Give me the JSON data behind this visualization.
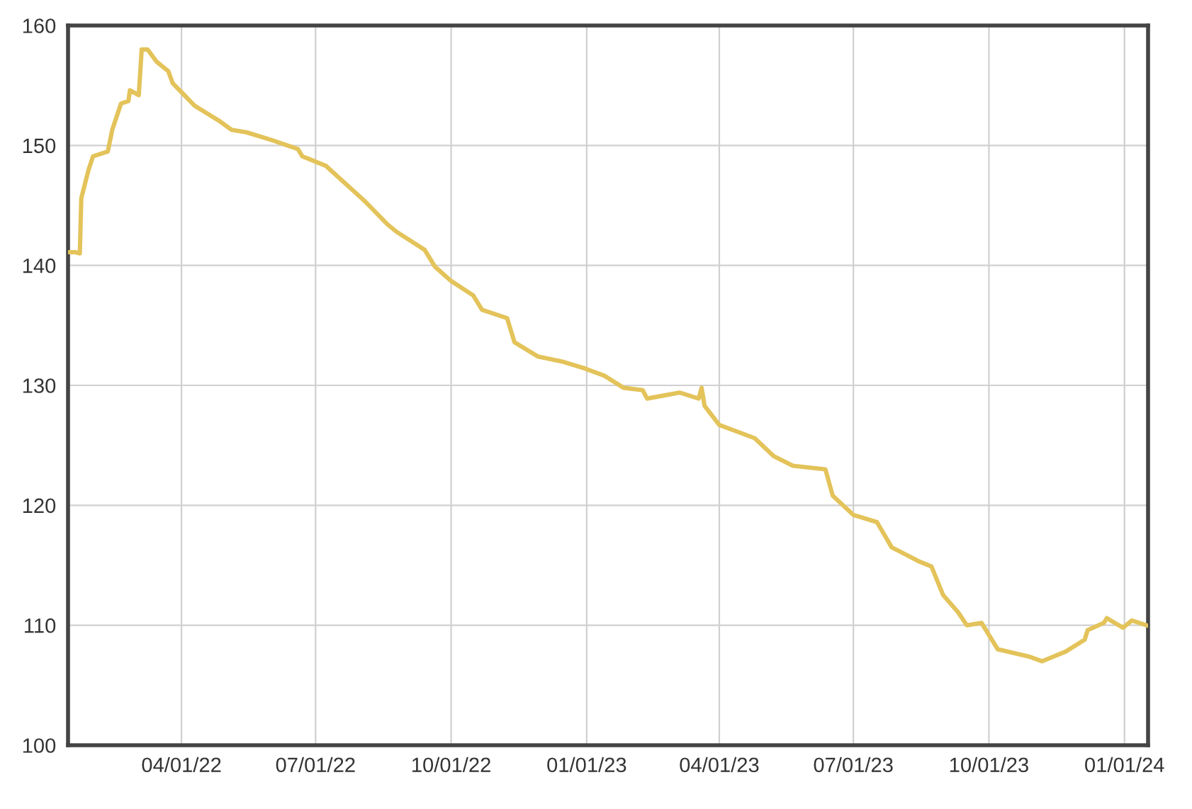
{
  "chart_data": {
    "type": "line",
    "grid": true,
    "marker": "none",
    "line_style": "solid",
    "x": [
      "2022-01-15",
      "2022-01-19",
      "2022-01-22",
      "2022-01-23",
      "2022-01-28",
      "2022-01-31",
      "2022-02-10",
      "2022-02-13",
      "2022-02-19",
      "2022-02-24",
      "2022-02-25",
      "2022-03-03",
      "2022-03-05",
      "2022-03-09",
      "2022-03-15",
      "2022-03-23",
      "2022-03-26",
      "2022-04-10",
      "2022-04-26",
      "2022-05-05",
      "2022-05-15",
      "2022-05-31",
      "2022-06-19",
      "2022-06-22",
      "2022-07-08",
      "2022-08-03",
      "2022-08-19",
      "2022-08-25",
      "2022-09-13",
      "2022-09-20",
      "2022-10-01",
      "2022-10-16",
      "2022-10-22",
      "2022-11-08",
      "2022-11-13",
      "2022-11-29",
      "2022-12-15",
      "2022-12-31",
      "2023-01-13",
      "2023-01-26",
      "2023-02-08",
      "2023-02-11",
      "2023-03-05",
      "2023-03-18",
      "2023-03-20",
      "2023-03-22",
      "2023-04-01",
      "2023-04-25",
      "2023-05-08",
      "2023-05-21",
      "2023-06-12",
      "2023-06-17",
      "2023-07-01",
      "2023-07-17",
      "2023-07-27",
      "2023-08-15",
      "2023-08-23",
      "2023-08-31",
      "2023-09-10",
      "2023-09-16",
      "2023-09-26",
      "2023-10-07",
      "2023-10-28",
      "2023-11-06",
      "2023-11-22",
      "2023-12-05",
      "2023-12-07",
      "2023-12-18",
      "2023-12-20",
      "2023-12-31",
      "2024-01-06",
      "2024-01-16"
    ],
    "series": [
      {
        "color": "#e3c35a",
        "values": [
          141.1,
          141.1,
          141.0,
          145.6,
          148.0,
          149.1,
          149.5,
          151.3,
          153.5,
          153.7,
          154.6,
          154.2,
          158.0,
          158.0,
          157.0,
          156.2,
          155.2,
          153.3,
          152.1,
          151.3,
          151.1,
          150.5,
          149.7,
          149.1,
          148.3,
          145.4,
          143.4,
          142.8,
          141.3,
          139.9,
          138.7,
          137.5,
          136.3,
          135.6,
          133.6,
          132.4,
          132.0,
          131.4,
          130.8,
          129.8,
          129.6,
          128.9,
          129.4,
          128.9,
          129.8,
          128.3,
          126.7,
          125.6,
          124.1,
          123.3,
          123.0,
          120.8,
          119.2,
          118.6,
          116.5,
          115.3,
          114.9,
          112.5,
          111.1,
          110.0,
          110.2,
          108.0,
          107.4,
          107.0,
          107.8,
          108.8,
          109.6,
          110.2,
          110.6,
          109.8,
          110.4,
          110.0
        ]
      }
    ],
    "xlim": [
      "2022-01-14",
      "2024-01-17"
    ],
    "xticks": [
      {
        "value": "2022-04-01",
        "label": "04/01/22"
      },
      {
        "value": "2022-07-01",
        "label": "07/01/22"
      },
      {
        "value": "2022-10-01",
        "label": "10/01/22"
      },
      {
        "value": "2023-01-01",
        "label": "01/01/23"
      },
      {
        "value": "2023-04-01",
        "label": "04/01/23"
      },
      {
        "value": "2023-07-01",
        "label": "07/01/23"
      },
      {
        "value": "2023-10-01",
        "label": "10/01/23"
      },
      {
        "value": "2024-01-01",
        "label": "01/01/24"
      }
    ],
    "ylim": [
      100,
      160
    ],
    "yticks": [
      100,
      110,
      120,
      130,
      140,
      150,
      160
    ]
  }
}
